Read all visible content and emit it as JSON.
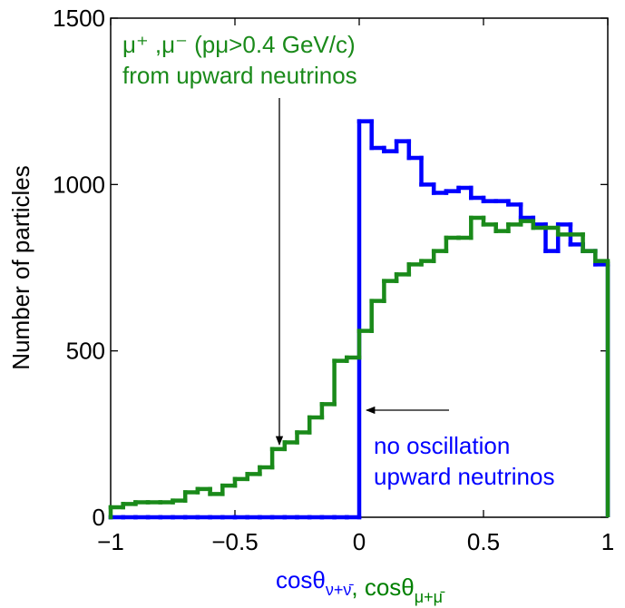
{
  "chart_data": {
    "type": "histogram",
    "y_label": "Number of particles",
    "x_label": [
      {
        "text": "cosθ",
        "sub": "ν+ν̄",
        "color": "#0000ff"
      },
      {
        "text": ", cosθ",
        "sub": "μ+μ̄",
        "color": "#008000"
      }
    ],
    "annotations": [
      {
        "lines": [
          "μ⁺ ,μ⁻  (pμ>0.4 GeV/c)",
          "from upward neutrinos"
        ],
        "color": "#1a8a1a"
      },
      {
        "lines": [
          "no oscillation",
          "upward neutrinos"
        ],
        "color": "#0000ff"
      }
    ],
    "bins": [
      -1,
      -0.95,
      -0.9,
      -0.85,
      -0.8,
      -0.75,
      -0.7,
      -0.65,
      -0.6,
      -0.55,
      -0.5,
      -0.45,
      -0.4,
      -0.35,
      -0.3,
      -0.25,
      -0.2,
      -0.15,
      -0.1,
      -0.05,
      0,
      0.05,
      0.1,
      0.15,
      0.2,
      0.25,
      0.3,
      0.35,
      0.4,
      0.45,
      0.5,
      0.55,
      0.6,
      0.65,
      0.7,
      0.75,
      0.8,
      0.85,
      0.9,
      0.95,
      1
    ],
    "series": [
      {
        "name": "no oscillation upward neutrinos",
        "color": "#0000ff",
        "values": [
          0,
          0,
          0,
          0,
          0,
          0,
          0,
          0,
          0,
          0,
          0,
          0,
          0,
          0,
          0,
          0,
          0,
          0,
          0,
          0,
          1190,
          1110,
          1100,
          1130,
          1080,
          1000,
          975,
          980,
          990,
          960,
          950,
          950,
          940,
          900,
          880,
          800,
          880,
          820,
          800,
          760
        ]
      },
      {
        "name": "μ⁺,μ⁻ from upward neutrinos",
        "color": "#1a8a1a",
        "values": [
          30,
          40,
          45,
          45,
          45,
          50,
          75,
          85,
          70,
          95,
          115,
          130,
          150,
          205,
          225,
          255,
          300,
          340,
          470,
          480,
          560,
          650,
          710,
          730,
          760,
          770,
          800,
          840,
          840,
          900,
          880,
          860,
          880,
          890,
          870,
          870,
          850,
          850,
          800,
          770
        ]
      }
    ],
    "xlim": [
      -1,
      1
    ],
    "ylim": [
      0,
      1500
    ],
    "xticks": [
      {
        "value": -1,
        "label": "−1"
      },
      {
        "value": -0.5,
        "label": "−0.5"
      },
      0,
      0.5,
      1
    ],
    "yticks": [
      0,
      500,
      1000,
      1500
    ],
    "grid": false
  }
}
